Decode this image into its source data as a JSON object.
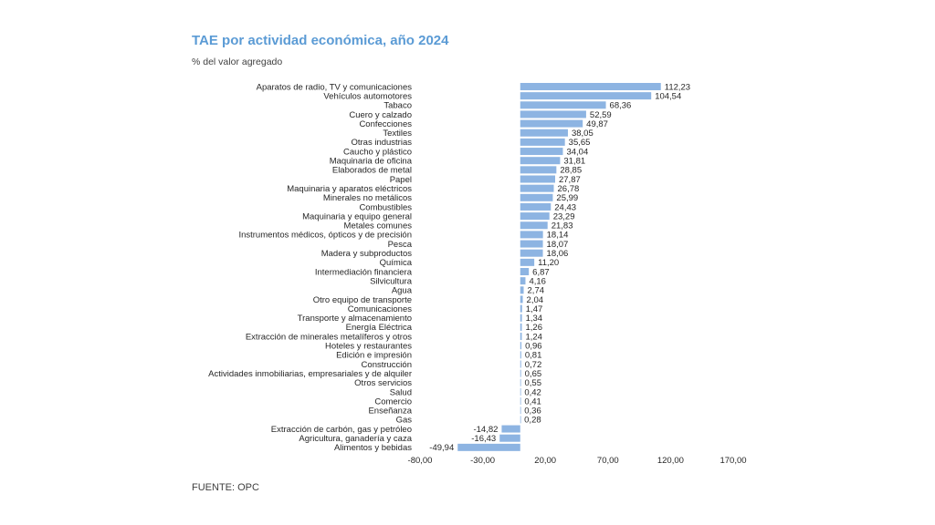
{
  "chart_data": {
    "type": "bar",
    "orientation": "horizontal",
    "title": "TAE por actividad económica, año 2024",
    "subtitle": "% del valor agregado",
    "source": "FUENTE: OPC",
    "bar_color": "#8db4e2",
    "xlim": [
      -80,
      170
    ],
    "x_ticks": [
      "-80,00",
      "-30,00",
      "20,00",
      "70,00",
      "120,00",
      "170,00"
    ],
    "x_tick_values": [
      -80,
      -30,
      20,
      70,
      120,
      170
    ],
    "grid": false,
    "legend": "none",
    "categories": [
      "Aparatos de radio, TV y comunicaciones",
      "Vehículos automotores",
      "Tabaco",
      "Cuero y calzado",
      "Confecciones",
      "Textiles",
      "Otras industrias",
      "Caucho y plástico",
      "Maquinaria de oficina",
      "Elaborados de metal",
      "Papel",
      "Maquinaria y aparatos eléctricos",
      "Minerales no metálicos",
      "Combustibles",
      "Maquinaria y equipo general",
      "Metales comunes",
      "Instrumentos médicos, ópticos y de precisión",
      "Pesca",
      "Madera y subproductos",
      "Química",
      "Intermediación financiera",
      "Silvicultura",
      "Agua",
      "Otro equipo de transporte",
      "Comunicaciones",
      "Transporte y almacenamiento",
      "Energía Eléctrica",
      "Extracción de minerales metalíferos y otros",
      "Hoteles y restaurantes",
      "Edición e impresión",
      "Construcción",
      "Actividades inmobiliarias, empresariales y de alquiler",
      "Otros servicios",
      "Salud",
      "Comercio",
      "Enseñanza",
      "Gas",
      "Extracción de carbón, gas y petróleo",
      "Agricultura, ganadería y caza",
      "Alimentos y bebidas"
    ],
    "values": [
      112.23,
      104.54,
      68.36,
      52.59,
      49.87,
      38.05,
      35.65,
      34.04,
      31.81,
      28.85,
      27.87,
      26.78,
      25.99,
      24.43,
      23.29,
      21.83,
      18.14,
      18.07,
      18.06,
      11.2,
      6.87,
      4.16,
      2.74,
      2.04,
      1.47,
      1.34,
      1.26,
      1.24,
      0.96,
      0.81,
      0.72,
      0.65,
      0.55,
      0.42,
      0.41,
      0.36,
      0.28,
      -14.82,
      -16.43,
      -49.94
    ],
    "value_labels": [
      "112,23",
      "104,54",
      "68,36",
      "52,59",
      "49,87",
      "38,05",
      "35,65",
      "34,04",
      "31,81",
      "28,85",
      "27,87",
      "26,78",
      "25,99",
      "24,43",
      "23,29",
      "21,83",
      "18,14",
      "18,07",
      "18,06",
      "11,20",
      "6,87",
      "4,16",
      "2,74",
      "2,04",
      "1,47",
      "1,34",
      "1,26",
      "1,24",
      "0,96",
      "0,81",
      "0,72",
      "0,65",
      "0,55",
      "0,42",
      "0,41",
      "0,36",
      "0,28",
      "-14,82",
      "-16,43",
      "-49,94"
    ]
  }
}
